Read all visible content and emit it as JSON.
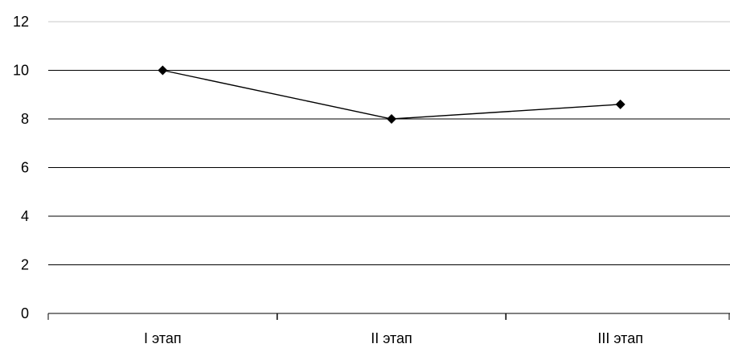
{
  "chart_data": {
    "type": "line",
    "categories": [
      "I этап",
      "II этап",
      "III этап"
    ],
    "series": [
      {
        "values": [
          10,
          8,
          8.6
        ]
      }
    ],
    "ylim": [
      0,
      12
    ],
    "yticks": [
      "0",
      "2",
      "4",
      "6",
      "8",
      "10",
      "12"
    ],
    "grid": true,
    "marker": "diamond",
    "colors": {
      "line": "#000000",
      "grid": "#000000",
      "top_grid": "#c8c8c8"
    }
  }
}
